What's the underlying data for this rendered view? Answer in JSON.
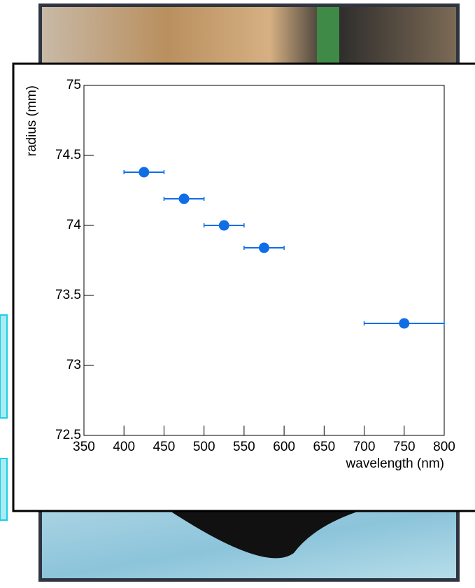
{
  "chart_data": {
    "type": "errorbar",
    "x_label": "wavelength (nm)",
    "y_label": "radius (mm)",
    "x": [
      425,
      475,
      525,
      575,
      750
    ],
    "x_err": [
      25,
      25,
      25,
      25,
      50
    ],
    "values": [
      74.38,
      74.19,
      74.0,
      73.84,
      73.3
    ],
    "color": "#0f6ee6",
    "xlim": [
      350,
      800
    ],
    "xticks": [
      350,
      400,
      450,
      500,
      550,
      600,
      650,
      700,
      750,
      800
    ],
    "ylim": [
      72.5,
      75
    ],
    "yticks": [
      72.5,
      73,
      73.5,
      74,
      74.5,
      75
    ]
  }
}
